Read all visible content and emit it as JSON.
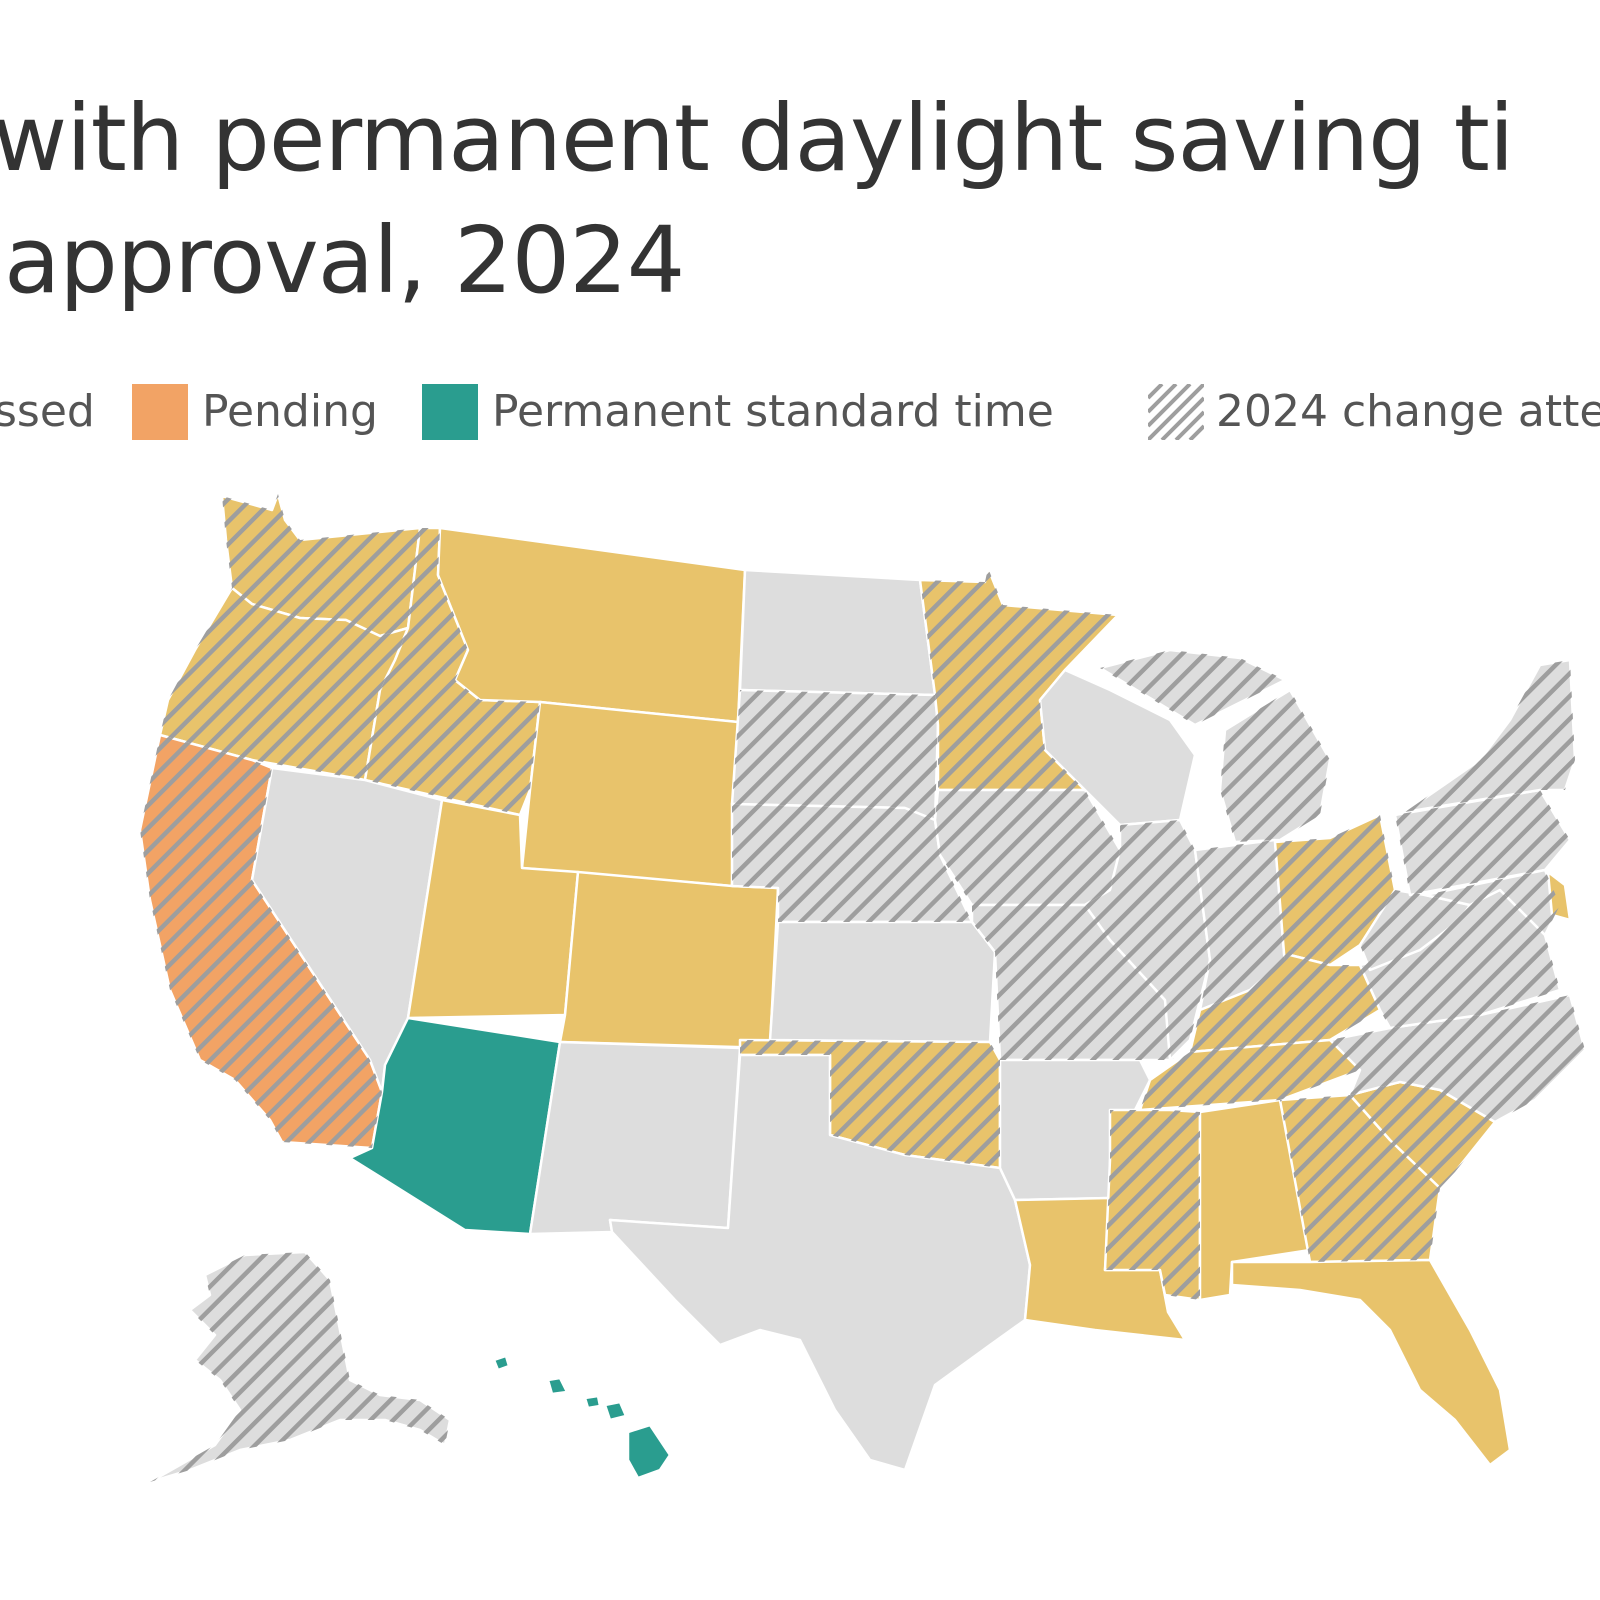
{
  "title": {
    "line1": "with permanent daylight saving ti",
    "line2": "approval, 2024"
  },
  "legend": [
    {
      "label": "ssed",
      "swatch": "none"
    },
    {
      "label": "Pending",
      "swatch": "pending",
      "color": "#F2A365"
    },
    {
      "label": "Permanent standard time",
      "swatch": "standard",
      "color": "#2A9D8F"
    },
    {
      "label": "2024 change atte",
      "swatch": "hatch"
    }
  ],
  "colors": {
    "passed": "#E8C36B",
    "pending": "#F2A365",
    "standard": "#2A9D8F",
    "none": "#DDDDDD",
    "hatch": "#9E9E9E",
    "border": "#FFFFFF"
  },
  "states": [
    {
      "name": "WA",
      "status": "passed",
      "attempt": true
    },
    {
      "name": "OR",
      "status": "passed",
      "attempt": true
    },
    {
      "name": "CA",
      "status": "pending",
      "attempt": true
    },
    {
      "name": "ID",
      "status": "passed",
      "attempt": true
    },
    {
      "name": "NV",
      "status": "none",
      "attempt": false
    },
    {
      "name": "MT",
      "status": "passed",
      "attempt": false
    },
    {
      "name": "WY",
      "status": "passed",
      "attempt": false
    },
    {
      "name": "UT",
      "status": "passed",
      "attempt": false
    },
    {
      "name": "CO",
      "status": "passed",
      "attempt": false
    },
    {
      "name": "AZ",
      "status": "standard",
      "attempt": false
    },
    {
      "name": "NM",
      "status": "none",
      "attempt": false
    },
    {
      "name": "ND",
      "status": "none",
      "attempt": false
    },
    {
      "name": "SD",
      "status": "none",
      "attempt": true
    },
    {
      "name": "NE",
      "status": "none",
      "attempt": true
    },
    {
      "name": "KS",
      "status": "none",
      "attempt": false
    },
    {
      "name": "OK",
      "status": "passed",
      "attempt": true
    },
    {
      "name": "TX",
      "status": "none",
      "attempt": false
    },
    {
      "name": "MN",
      "status": "passed",
      "attempt": true
    },
    {
      "name": "IA",
      "status": "none",
      "attempt": true
    },
    {
      "name": "MO",
      "status": "none",
      "attempt": true
    },
    {
      "name": "AR",
      "status": "none",
      "attempt": false
    },
    {
      "name": "LA",
      "status": "passed",
      "attempt": false
    },
    {
      "name": "WI",
      "status": "none",
      "attempt": false
    },
    {
      "name": "IL",
      "status": "none",
      "attempt": true
    },
    {
      "name": "MI",
      "status": "none",
      "attempt": true
    },
    {
      "name": "IN",
      "status": "none",
      "attempt": true
    },
    {
      "name": "OH",
      "status": "passed",
      "attempt": true
    },
    {
      "name": "KY",
      "status": "passed",
      "attempt": true
    },
    {
      "name": "TN",
      "status": "passed",
      "attempt": true
    },
    {
      "name": "MS",
      "status": "passed",
      "attempt": true
    },
    {
      "name": "AL",
      "status": "passed",
      "attempt": false
    },
    {
      "name": "GA",
      "status": "passed",
      "attempt": true
    },
    {
      "name": "FL",
      "status": "passed",
      "attempt": false
    },
    {
      "name": "SC",
      "status": "passed",
      "attempt": true
    },
    {
      "name": "NC",
      "status": "none",
      "attempt": true
    },
    {
      "name": "VA",
      "status": "none",
      "attempt": true
    },
    {
      "name": "WV",
      "status": "none",
      "attempt": true
    },
    {
      "name": "PA",
      "status": "none",
      "attempt": true
    },
    {
      "name": "NY",
      "status": "none",
      "attempt": true
    },
    {
      "name": "MD",
      "status": "none",
      "attempt": true
    },
    {
      "name": "DE",
      "status": "passed",
      "attempt": false
    },
    {
      "name": "AK",
      "status": "none",
      "attempt": true
    },
    {
      "name": "HI",
      "status": "standard",
      "attempt": false
    }
  ]
}
